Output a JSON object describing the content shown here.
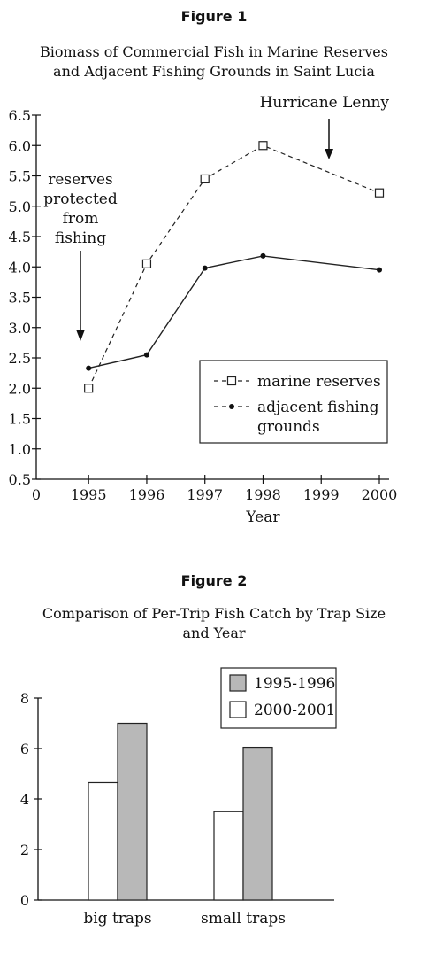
{
  "figure1": {
    "label": "Figure 1",
    "title_line1": "Biomass of Commercial Fish in Marine Reserves",
    "title_line2": "and Adjacent Fishing Grounds in Saint Lucia",
    "annotation_hurricane": "Hurricane Lenny",
    "annotation_reserves": [
      "reserves",
      "protected",
      "from",
      "fishing"
    ]
  },
  "figure2": {
    "label": "Figure 2",
    "title_line1": "Comparison of Per-Trip Fish Catch by Trap Size",
    "title_line2": "and Year"
  },
  "chart_data": [
    {
      "type": "line",
      "title": "Biomass of Commercial Fish in Marine Reserves and Adjacent Fishing Grounds in Saint Lucia",
      "xlabel": "Year",
      "ylabel": "",
      "xlim": [
        1994.1,
        2000
      ],
      "ylim": [
        0.5,
        6.5
      ],
      "x_ticks": [
        "0",
        "1995",
        "1996",
        "1997",
        "1998",
        "1999",
        "2000"
      ],
      "y_ticks": [
        "0.5",
        "1.0",
        "1.5",
        "2.0",
        "2.5",
        "3.0",
        "3.5",
        "4.0",
        "4.5",
        "5.0",
        "5.5",
        "6.0",
        "6.5"
      ],
      "legend_position": "bottom-right",
      "grid": false,
      "series": [
        {
          "name": "marine reserves",
          "style": "dashed",
          "marker": "open-square",
          "x": [
            1995,
            1996,
            1997,
            1998,
            2000
          ],
          "y": [
            2.0,
            4.05,
            5.45,
            6.0,
            5.22
          ]
        },
        {
          "name": "adjacent fishing grounds",
          "style": "solid",
          "marker": "filled-circle",
          "x": [
            1995,
            1996,
            1997,
            1998,
            2000
          ],
          "y": [
            2.33,
            2.55,
            3.98,
            4.18,
            3.95
          ]
        }
      ]
    },
    {
      "type": "bar",
      "title": "Comparison of Per-Trip Fish Catch by Trap Size and Year",
      "xlabel": "",
      "ylabel": "",
      "ylim": [
        0,
        8
      ],
      "y_ticks": [
        "0",
        "2",
        "4",
        "6",
        "8"
      ],
      "categories": [
        "big traps",
        "small traps"
      ],
      "legend_position": "top-right",
      "grid": false,
      "series": [
        {
          "name": "1995-1996",
          "color": "#b8b8b8",
          "values": [
            7.0,
            6.05
          ]
        },
        {
          "name": "2000-2001",
          "color": "#ffffff",
          "values": [
            4.65,
            3.5
          ]
        }
      ]
    }
  ]
}
